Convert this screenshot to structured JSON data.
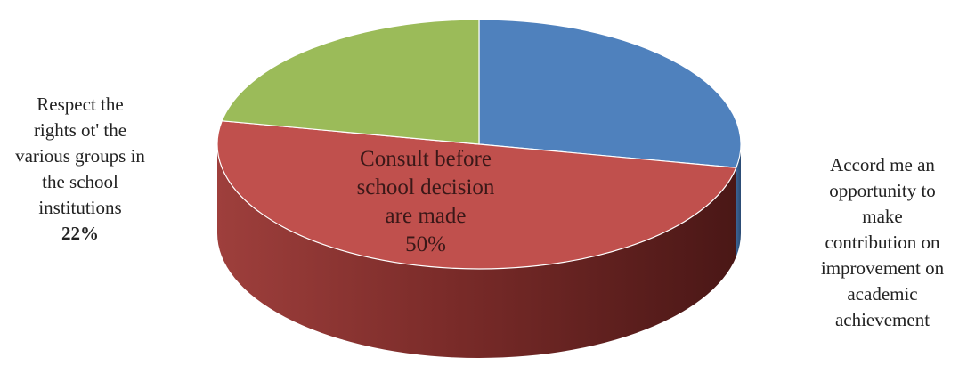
{
  "chart_data": {
    "type": "pie",
    "style": "3d",
    "slices": [
      {
        "label": "Accord me an opportunity to make contribution on improvement on academic achievement",
        "value": 28,
        "color": "#4f81bd"
      },
      {
        "label": "Consult before school decision are made",
        "value": 50,
        "color": "#c0504d"
      },
      {
        "label": "Respect the rights ot' the various groups in the school institutions",
        "value": 22,
        "color": "#9bbb59"
      }
    ]
  },
  "labels": {
    "left": {
      "lines": [
        "Respect the",
        "rights ot' the",
        "various groups in",
        "the school",
        "institutions"
      ],
      "pct": "22%"
    },
    "center": {
      "lines": [
        "Consult before",
        "school decision",
        "are made"
      ],
      "pct": "50%"
    },
    "right": {
      "lines": [
        "Accord me an",
        "opportunity to",
        "make",
        "contribution on",
        "improvement on",
        "academic",
        "achievement"
      ]
    }
  }
}
